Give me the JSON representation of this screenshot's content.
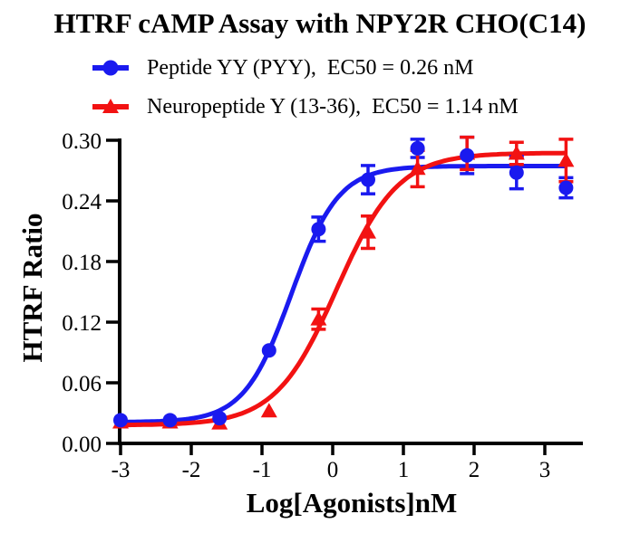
{
  "chart_data": {
    "type": "line",
    "title": "HTRF cAMP Assay with NPY2R CHO(C14)",
    "xlabel": "Log[Agonists]nM",
    "ylabel": "HTRF Ratio",
    "xlim": [
      -3,
      3.53
    ],
    "ylim": [
      0,
      0.3
    ],
    "x_ticks": [
      -3,
      -2,
      -1,
      0,
      1,
      2,
      3
    ],
    "y_ticks": [
      0.0,
      0.06,
      0.12,
      0.18,
      0.24,
      0.3
    ],
    "y_tick_labels": [
      "0.00",
      "0.06",
      "0.12",
      "0.18",
      "0.24",
      "0.30"
    ],
    "grid": false,
    "legend_position": "top-left",
    "axis_color": "#000000",
    "series": [
      {
        "name": "Peptide YY (PYY)",
        "legend_label": "Peptide YY (PYY),  EC50 = 0.26 nM",
        "ec50_label": "EC50 = 0.26 nM",
        "color": "#1a1aef",
        "marker": "circle",
        "x": [
          -3.0,
          -2.3,
          -1.6,
          -0.9,
          -0.2,
          0.5,
          1.2,
          1.9,
          2.6,
          3.3
        ],
        "y": [
          0.023,
          0.023,
          0.025,
          0.092,
          0.212,
          0.261,
          0.292,
          0.285,
          0.268,
          0.253
        ],
        "yerr": [
          null,
          null,
          null,
          null,
          0.012,
          0.014,
          0.009,
          0.018,
          0.016,
          0.01
        ],
        "fit": {
          "bottom": 0.021,
          "top": 0.2745,
          "logEC50": -0.585,
          "hill": 1.3
        }
      },
      {
        "name": "Neuropeptide Y (13-36)",
        "legend_label": "Neuropeptide Y (13-36),  EC50 = 1.14 nM",
        "ec50_label": "EC50 = 1.14 nM",
        "color": "#f21212",
        "marker": "triangle",
        "x": [
          -3.0,
          -2.3,
          -1.6,
          -0.9,
          -0.2,
          0.5,
          1.2,
          1.9,
          2.6,
          3.3
        ],
        "y": [
          0.021,
          0.021,
          0.02,
          0.032,
          0.123,
          0.209,
          0.272,
          0.287,
          0.287,
          0.28
        ],
        "yerr": [
          null,
          null,
          null,
          null,
          0.01,
          0.016,
          0.018,
          0.016,
          0.011,
          0.021
        ],
        "fit": {
          "bottom": 0.018,
          "top": 0.2875,
          "logEC50": 0.057,
          "hill": 1.0
        }
      }
    ]
  }
}
